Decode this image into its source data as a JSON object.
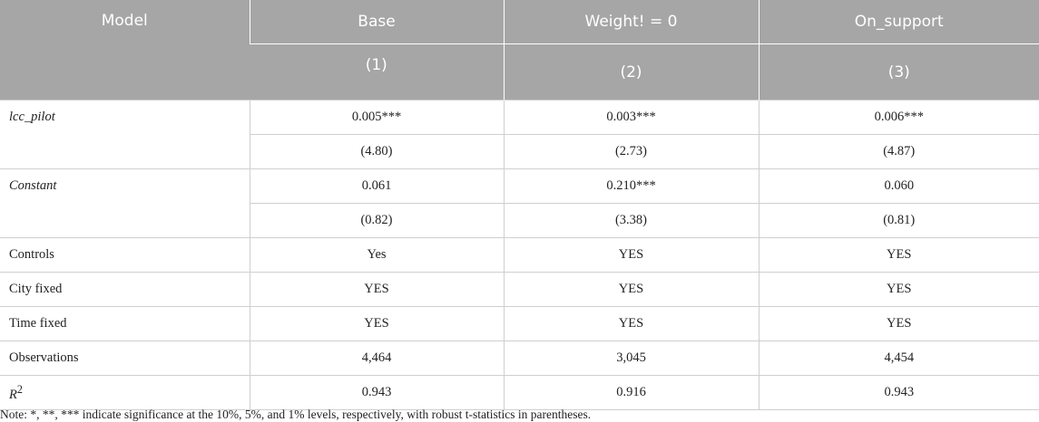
{
  "header": {
    "model": "Model",
    "columns": [
      "Base",
      "Weight! = 0",
      "On_support"
    ],
    "numbers": [
      "(1)",
      "(2)",
      "(3)"
    ]
  },
  "table": {
    "rows": [
      {
        "label": "lcc_pilot",
        "italic": true,
        "lines": [
          [
            "0.005***",
            "0.003***",
            "0.006***"
          ],
          [
            "(4.80)",
            "(2.73)",
            "(4.87)"
          ]
        ]
      },
      {
        "label": "Constant",
        "italic": true,
        "lines": [
          [
            "0.061",
            "0.210***",
            "0.060"
          ],
          [
            "(0.82)",
            "(3.38)",
            "(0.81)"
          ]
        ]
      },
      {
        "label": "Controls",
        "lines": [
          [
            "Yes",
            "YES",
            "YES"
          ]
        ]
      },
      {
        "label": "City fixed",
        "lines": [
          [
            "YES",
            "YES",
            "YES"
          ]
        ]
      },
      {
        "label": "Time fixed",
        "lines": [
          [
            "YES",
            "YES",
            "YES"
          ]
        ]
      },
      {
        "label": "Observations",
        "lines": [
          [
            "4,464",
            "3,045",
            "4,454"
          ]
        ]
      },
      {
        "label": "R",
        "label_sup": "2",
        "italic": true,
        "lines": [
          [
            "0.943",
            "0.916",
            "0.943"
          ]
        ]
      }
    ]
  },
  "note": "Note: *, **, *** indicate significance at the 10%, 5%, and 1% levels, respectively, with robust t-statistics in parentheses."
}
